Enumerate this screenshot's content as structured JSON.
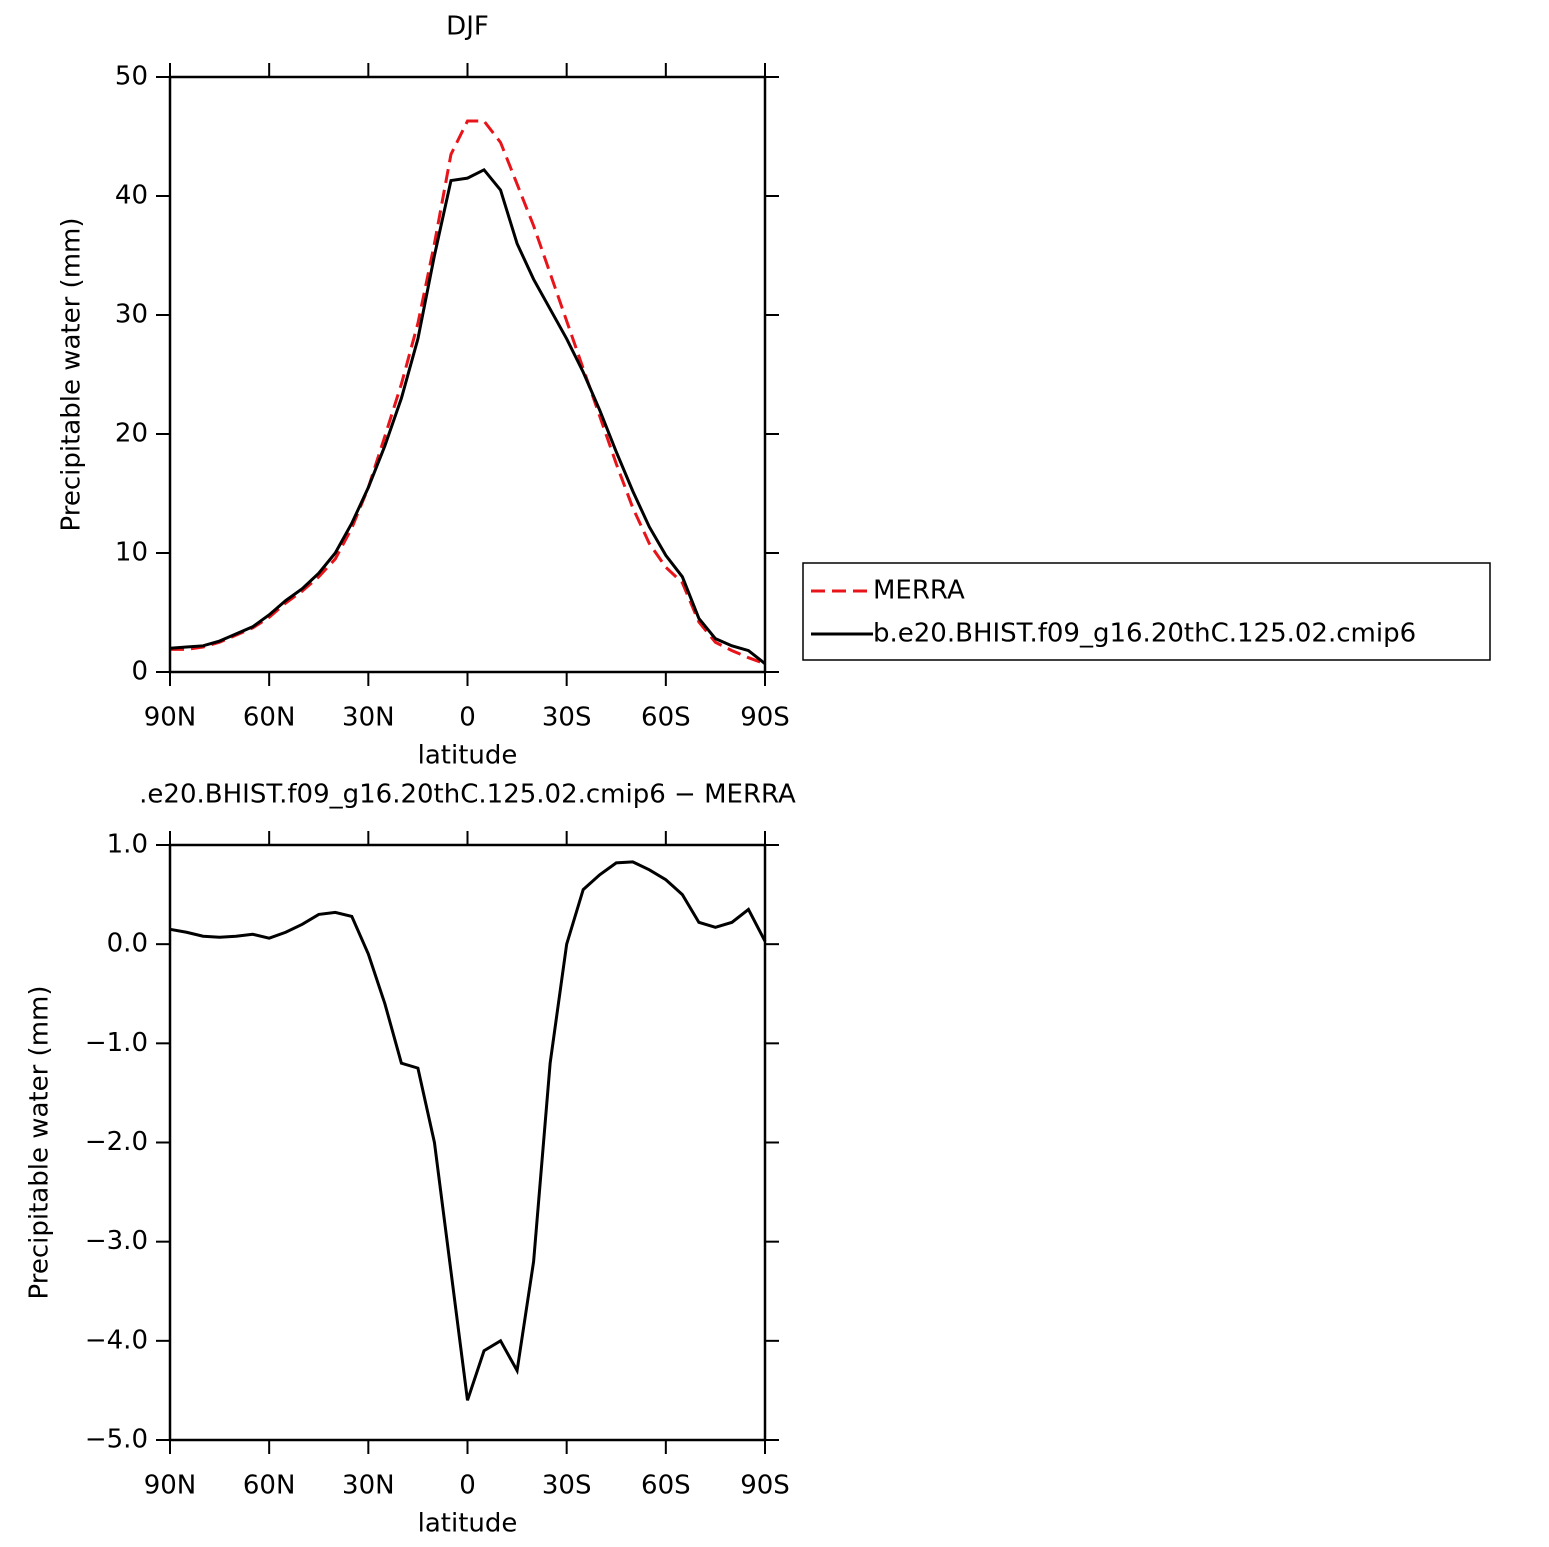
{
  "chart_data": [
    {
      "type": "line",
      "title": "DJF",
      "xlabel": "latitude",
      "ylabel": "Precipitable water (mm)",
      "x": [
        90,
        85,
        80,
        75,
        70,
        65,
        60,
        55,
        50,
        45,
        40,
        35,
        30,
        25,
        20,
        15,
        10,
        5,
        0,
        -5,
        -10,
        -15,
        -20,
        -25,
        -30,
        -35,
        -40,
        -45,
        -50,
        -55,
        -60,
        -65,
        -70,
        -75,
        -80,
        -85,
        -90
      ],
      "xlim": [
        90,
        -90
      ],
      "xticks": [
        {
          "value": 90,
          "label": "90N"
        },
        {
          "value": 60,
          "label": "60N"
        },
        {
          "value": 30,
          "label": "30N"
        },
        0,
        {
          "value": -30,
          "label": "30S"
        },
        {
          "value": -60,
          "label": "60S"
        },
        {
          "value": -90,
          "label": "90S"
        }
      ],
      "ylim": [
        0,
        50
      ],
      "yticks": [
        0,
        10,
        20,
        30,
        40,
        50
      ],
      "legend": "right",
      "series": [
        {
          "name": "MERRA",
          "color": "#e8141a",
          "dash": "dashed",
          "values": [
            1.9,
            1.9,
            2.1,
            2.5,
            3.1,
            3.7,
            4.6,
            5.8,
            6.8,
            8.0,
            9.5,
            12.1,
            15.5,
            19.8,
            24.2,
            29.3,
            36.0,
            43.5,
            46.3,
            46.3,
            44.5,
            41.0,
            37.5,
            33.5,
            29.5,
            25.5,
            21.5,
            17.5,
            13.8,
            10.8,
            8.8,
            7.5,
            4.2,
            2.5,
            1.8,
            1.2,
            0.7
          ]
        },
        {
          "name": "b.e20.BHIST.f09_g16.20thC.125.02.cmip6",
          "color": "#000000",
          "dash": "solid",
          "values": [
            2.0,
            2.1,
            2.2,
            2.6,
            3.2,
            3.8,
            4.8,
            6.0,
            7.0,
            8.3,
            10.0,
            12.5,
            15.5,
            19.0,
            23.0,
            28.0,
            35.0,
            41.3,
            41.5,
            42.2,
            40.5,
            36.0,
            33.0,
            30.5,
            28.0,
            25.2,
            22.0,
            18.5,
            15.2,
            12.2,
            9.8,
            8.0,
            4.5,
            2.8,
            2.2,
            1.8,
            0.7
          ]
        }
      ]
    },
    {
      "type": "line",
      "title": ".e20.BHIST.f09_g16.20thC.125.02.cmip6 − MERRA",
      "xlabel": "latitude",
      "ylabel": "Precipitable water (mm)",
      "x": [
        90,
        85,
        80,
        75,
        70,
        65,
        60,
        55,
        50,
        45,
        40,
        35,
        30,
        25,
        20,
        15,
        10,
        5,
        0,
        -5,
        -10,
        -15,
        -20,
        -25,
        -30,
        -35,
        -40,
        -45,
        -50,
        -55,
        -60,
        -65,
        -70,
        -75,
        -80,
        -85,
        -90
      ],
      "xlim": [
        90,
        -90
      ],
      "xticks": [
        {
          "value": 90,
          "label": "90N"
        },
        {
          "value": 60,
          "label": "60N"
        },
        {
          "value": 30,
          "label": "30N"
        },
        0,
        {
          "value": -30,
          "label": "30S"
        },
        {
          "value": -60,
          "label": "60S"
        },
        {
          "value": -90,
          "label": "90S"
        }
      ],
      "ylim": [
        -5,
        1
      ],
      "yticks": [
        {
          "value": -5,
          "label": "−5.0"
        },
        {
          "value": -4,
          "label": "−4.0"
        },
        {
          "value": -3,
          "label": "−3.0"
        },
        {
          "value": -2,
          "label": "−2.0"
        },
        {
          "value": -1,
          "label": "−1.0"
        },
        {
          "value": 0,
          "label": "0.0"
        },
        {
          "value": 1,
          "label": "1.0"
        }
      ],
      "series": [
        {
          "color": "#000000",
          "dash": "solid",
          "values": [
            0.15,
            0.12,
            0.08,
            0.07,
            0.08,
            0.1,
            0.06,
            0.12,
            0.2,
            0.3,
            0.32,
            0.28,
            -0.1,
            -0.6,
            -1.2,
            -1.25,
            -2.0,
            -3.3,
            -4.6,
            -4.1,
            -4.0,
            -4.3,
            -3.2,
            -1.2,
            0.0,
            0.55,
            0.7,
            0.82,
            0.83,
            0.75,
            0.65,
            0.5,
            0.22,
            0.17,
            0.22,
            0.35,
            0.03
          ]
        }
      ]
    }
  ]
}
